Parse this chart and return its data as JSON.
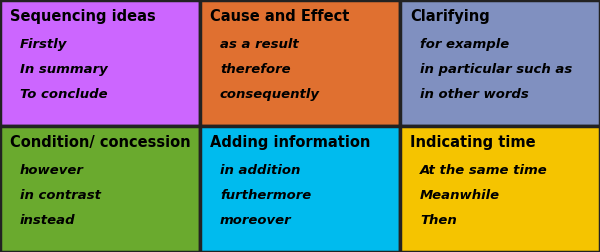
{
  "cells": [
    {
      "row": 0,
      "col": 0,
      "bg_color": "#cc66ff",
      "title": "Sequencing ideas",
      "items": [
        "Firstly",
        "In summary",
        "To conclude"
      ]
    },
    {
      "row": 0,
      "col": 1,
      "bg_color": "#e07030",
      "title": "Cause and Effect",
      "items": [
        "as a result",
        "therefore",
        "consequently"
      ]
    },
    {
      "row": 0,
      "col": 2,
      "bg_color": "#8090c0",
      "title": "Clarifying",
      "items": [
        "for example",
        "in particular such as",
        "in other words"
      ]
    },
    {
      "row": 1,
      "col": 0,
      "bg_color": "#6aaa2e",
      "title": "Condition/ concession",
      "items": [
        "however",
        "in contrast",
        "instead"
      ]
    },
    {
      "row": 1,
      "col": 1,
      "bg_color": "#00bbee",
      "title": "Adding information",
      "items": [
        "in addition",
        "furthermore",
        "moreover"
      ]
    },
    {
      "row": 1,
      "col": 2,
      "bg_color": "#f5c400",
      "title": "Indicating time",
      "items": [
        "At the same time",
        "Meanwhile",
        "Then"
      ]
    }
  ],
  "n_rows": 2,
  "n_cols": 3,
  "border_color": "#222222",
  "border_width": 2.5,
  "title_fontsize": 10.5,
  "item_fontsize": 9.5,
  "text_color": "#000000",
  "figwidth": 6.0,
  "figheight": 2.52
}
